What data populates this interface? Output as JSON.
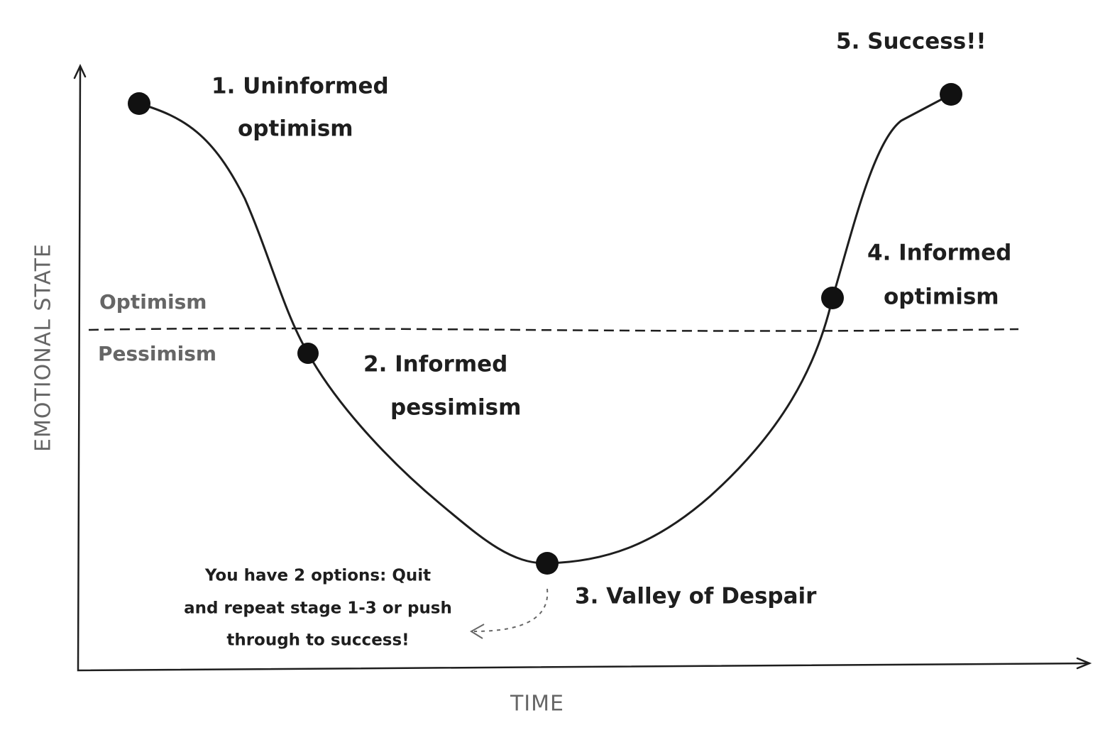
{
  "axes": {
    "y_label": "EMOTIONAL STATE",
    "x_label": "TIME"
  },
  "zones": {
    "above": "Optimism",
    "below": "Pessimism"
  },
  "stages": [
    {
      "lines": [
        "1. Uninformed",
        "optimism"
      ]
    },
    {
      "lines": [
        "2. Informed",
        "pessimism"
      ]
    },
    {
      "lines": [
        "3. Valley of Despair"
      ]
    },
    {
      "lines": [
        "4. Informed",
        "optimism"
      ]
    },
    {
      "lines": [
        "5. Success!!"
      ]
    }
  ],
  "note": {
    "lines": [
      "You have 2 options: Quit",
      "and repeat stage 1-3 or push",
      "through to success!"
    ]
  }
}
